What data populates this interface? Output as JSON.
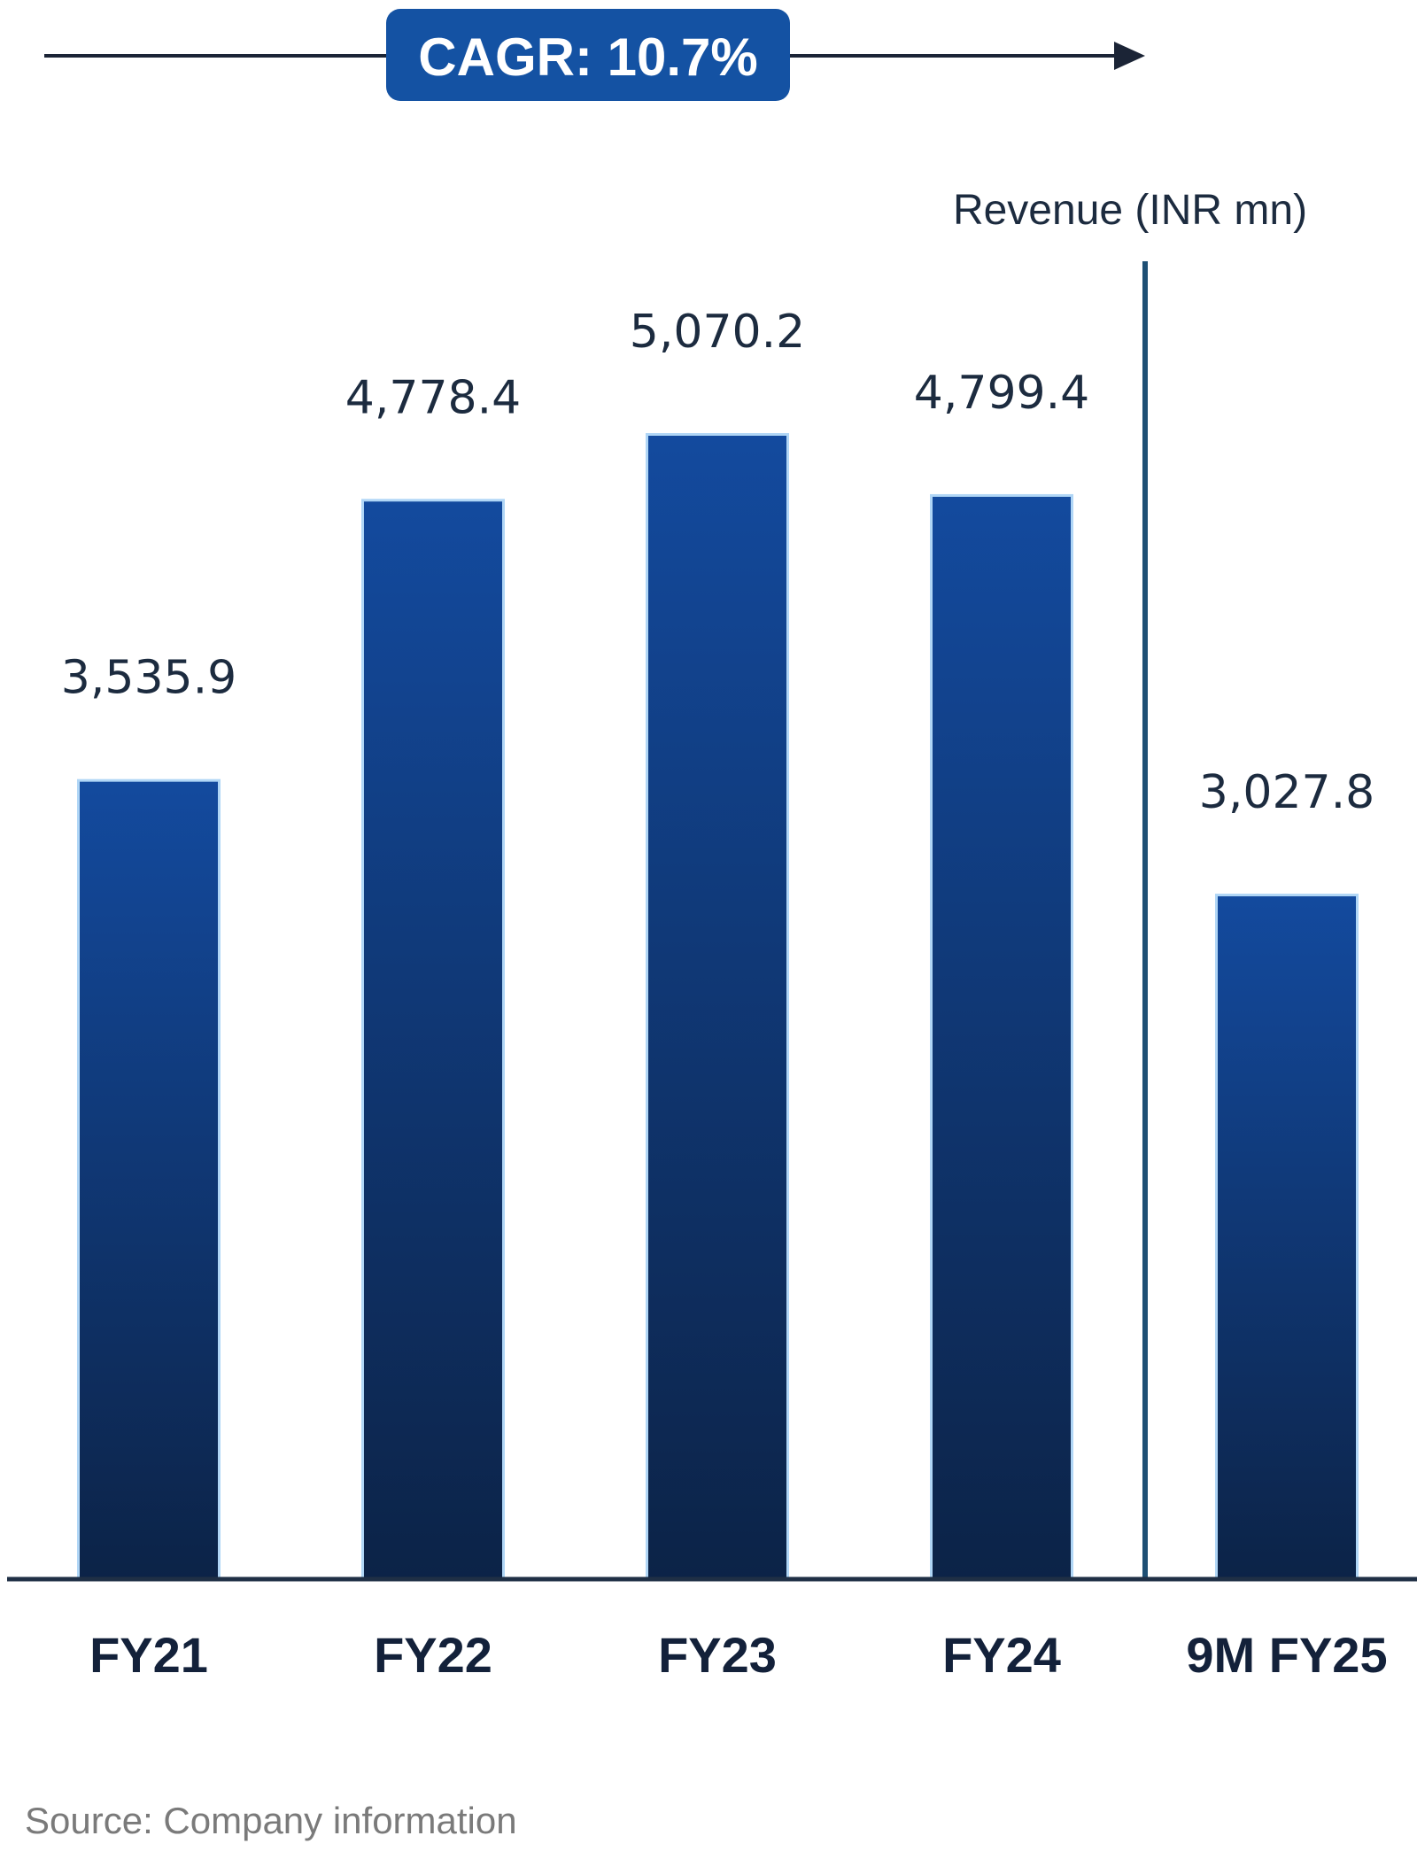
{
  "chart_data": {
    "type": "bar",
    "categories": [
      "FY21",
      "FY22",
      "FY23",
      "FY24",
      "9M FY25"
    ],
    "values": [
      3535.9,
      4778.4,
      5070.2,
      4799.4,
      3027.8
    ],
    "value_labels": [
      "3,535.9",
      "4,778.4",
      "5,070.2",
      "4,799.4",
      "3,027.8"
    ],
    "ylabel": "Revenue (INR mn)",
    "ylim": [
      0,
      5070.2
    ],
    "grid": false,
    "annotation": "CAGR: 10.7%",
    "source": "Source: Company information",
    "colors": {
      "bar_top": "#134a9e",
      "bar_bottom": "#0c2347",
      "bar_glow": "#6fb4ee",
      "badge": "#1452a3",
      "axis": "#1f2f45",
      "divider": "#1e4f74"
    }
  }
}
